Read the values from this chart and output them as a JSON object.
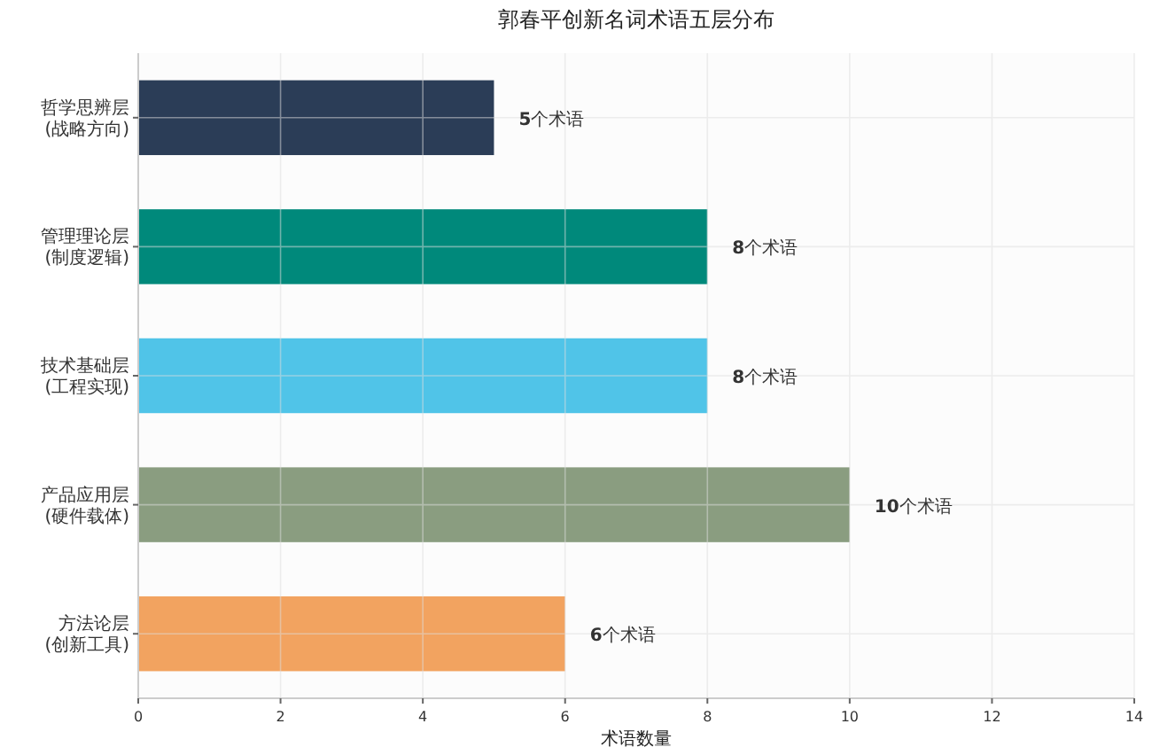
{
  "chart_data": {
    "type": "bar",
    "orientation": "horizontal",
    "title": "郭春平创新名词术语五层分布",
    "xlabel": "术语数量",
    "categories": [
      "哲学思辨层\n(战略方向)",
      "管理理论层\n(制度逻辑)",
      "技术基础层\n(工程实现)",
      "产品应用层\n(硬件载体)",
      "方法论层\n(创新工具)"
    ],
    "values": [
      5,
      8,
      8,
      10,
      6
    ],
    "colors": [
      "#2b3d57",
      "#00897b",
      "#50c4e8",
      "#8a9d80",
      "#f2a360"
    ],
    "value_labels": [
      "5个术语",
      "8个术语",
      "8个术语",
      "10个术语",
      "6个术语"
    ],
    "xlim": [
      0,
      14
    ],
    "xticks": [
      0,
      2,
      4,
      6,
      8,
      10,
      12,
      14
    ],
    "grid": true
  }
}
